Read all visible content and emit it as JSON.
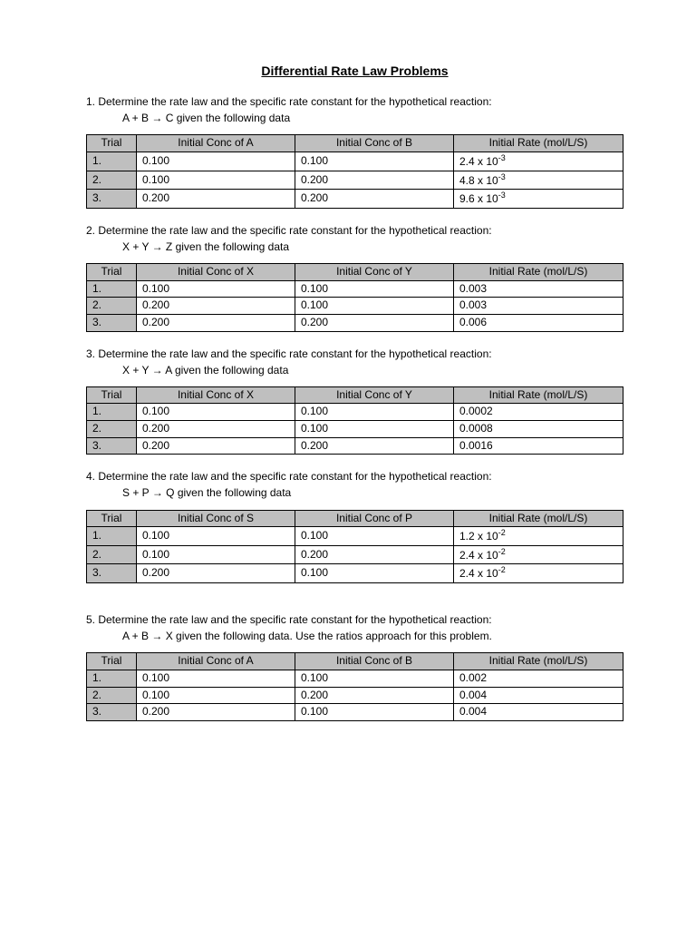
{
  "title": "Differential Rate Law Problems",
  "problems": [
    {
      "num": "1.",
      "text": "Determine the rate law and the specific rate constant for the hypothetical reaction:",
      "eq_pre": "A  +  B  ",
      "eq_post": "  C  given the following data",
      "col1": "Initial Conc of A",
      "col2": "Initial Conc of B",
      "col3": "Initial Rate (mol/L/S)",
      "rows": [
        {
          "t": "1.",
          "a": "0.100",
          "b": "0.100",
          "r_pre": "2.4 x 10",
          "r_sup": "-3"
        },
        {
          "t": "2.",
          "a": "0.100",
          "b": "0.200",
          "r_pre": "4.8 x 10",
          "r_sup": "-3"
        },
        {
          "t": "3.",
          "a": "0.200",
          "b": "0.200",
          "r_pre": "9.6 x 10",
          "r_sup": "-3"
        }
      ]
    },
    {
      "num": "2.",
      "text": "Determine the rate law and the specific rate constant for the hypothetical reaction:",
      "eq_pre": "X  +  Y  ",
      "eq_post": "  Z  given the following data",
      "col1": "Initial Conc of X",
      "col2": "Initial Conc of Y",
      "col3": "Initial Rate (mol/L/S)",
      "rows": [
        {
          "t": "1.",
          "a": "0.100",
          "b": "0.100",
          "r_pre": "0.003",
          "r_sup": ""
        },
        {
          "t": "2.",
          "a": "0.200",
          "b": "0.100",
          "r_pre": "0.003",
          "r_sup": ""
        },
        {
          "t": "3.",
          "a": "0.200",
          "b": "0.200",
          "r_pre": "0.006",
          "r_sup": ""
        }
      ]
    },
    {
      "num": "3.",
      "text": "Determine the rate law and the specific rate constant for the hypothetical reaction:",
      "eq_pre": "X +  Y  ",
      "eq_post": "  A  given the following data",
      "col1": "Initial Conc of X",
      "col2": "Initial Conc of Y",
      "col3": "Initial Rate (mol/L/S)",
      "rows": [
        {
          "t": "1.",
          "a": "0.100",
          "b": "0.100",
          "r_pre": "0.0002",
          "r_sup": ""
        },
        {
          "t": "2.",
          "a": "0.200",
          "b": "0.100",
          "r_pre": "0.0008",
          "r_sup": ""
        },
        {
          "t": "3.",
          "a": "0.200",
          "b": "0.200",
          "r_pre": "0.0016",
          "r_sup": ""
        }
      ]
    },
    {
      "num": "4.",
      "text": "Determine the rate law and the specific rate constant for the hypothetical reaction:",
      "eq_pre": "S  +  P ",
      "eq_post": "  Q  given the following data",
      "col1": "Initial Conc of S",
      "col2": "Initial Conc of P",
      "col3": "Initial Rate (mol/L/S)",
      "rows": [
        {
          "t": "1.",
          "a": "0.100",
          "b": "0.100",
          "r_pre": "1.2 x 10",
          "r_sup": "-2"
        },
        {
          "t": "2.",
          "a": "0.100",
          "b": "0.200",
          "r_pre": "2.4 x 10",
          "r_sup": "-2"
        },
        {
          "t": "3.",
          "a": "0.200",
          "b": "0.100",
          "r_pre": "2.4 x 10",
          "r_sup": "-2"
        }
      ]
    },
    {
      "num": "5.",
      "text": "Determine the rate law and the specific rate constant for the hypothetical reaction:",
      "eq_pre": "A  +  B  ",
      "eq_post": "  X  given the following data.  Use the ratios approach for this problem.",
      "col1": "Initial Conc of A",
      "col2": "Initial Conc of B",
      "col3": "Initial Rate (mol/L/S)",
      "rows": [
        {
          "t": "1.",
          "a": "0.100",
          "b": "0.100",
          "r_pre": "0.002",
          "r_sup": ""
        },
        {
          "t": "2.",
          "a": "0.100",
          "b": "0.200",
          "r_pre": "0.004",
          "r_sup": ""
        },
        {
          "t": "3.",
          "a": "0.200",
          "b": "0.100",
          "r_pre": "0.004",
          "r_sup": ""
        }
      ],
      "extra_gap": true
    }
  ],
  "arrow": "→",
  "headers": {
    "trial": "Trial"
  },
  "style": {
    "bg": "#ffffff",
    "th_bg": "#bfbfbf",
    "text": "#000000",
    "body_fontsize": 12,
    "title_fontsize": 14
  }
}
